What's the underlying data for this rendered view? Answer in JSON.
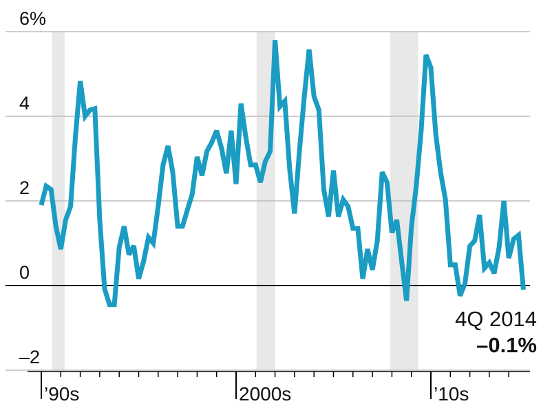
{
  "chart_data": {
    "type": "line",
    "x": [
      1990,
      1990.25,
      1990.5,
      1990.75,
      1991,
      1991.25,
      1991.5,
      1991.75,
      1992,
      1992.25,
      1992.5,
      1992.75,
      1993,
      1993.25,
      1993.5,
      1993.75,
      1994,
      1994.25,
      1994.5,
      1994.75,
      1995,
      1995.25,
      1995.5,
      1995.75,
      1996,
      1996.25,
      1996.5,
      1996.75,
      1997,
      1997.25,
      1997.5,
      1997.75,
      1998,
      1998.25,
      1998.5,
      1998.75,
      1999,
      1999.25,
      1999.5,
      1999.75,
      2000,
      2000.25,
      2000.5,
      2000.75,
      2001,
      2001.25,
      2001.5,
      2001.75,
      2002,
      2002.25,
      2002.5,
      2002.75,
      2003,
      2003.25,
      2003.5,
      2003.75,
      2004,
      2004.25,
      2004.5,
      2004.75,
      2005,
      2005.25,
      2005.5,
      2005.75,
      2006,
      2006.25,
      2006.5,
      2006.75,
      2007,
      2007.25,
      2007.5,
      2007.75,
      2008,
      2008.25,
      2008.5,
      2008.75,
      2009,
      2009.25,
      2009.5,
      2009.75,
      2010,
      2010.25,
      2010.5,
      2010.75,
      2011,
      2011.25,
      2011.5,
      2011.75,
      2012,
      2012.25,
      2012.5,
      2012.75,
      2013,
      2013.25,
      2013.5,
      2013.75,
      2014,
      2014.25,
      2014.5,
      2014.75
    ],
    "series": [
      {
        "color": "#1b9cc2",
        "values": [
          1.9,
          2.35,
          2.27,
          1.4,
          0.86,
          1.55,
          1.87,
          3.5,
          4.83,
          4.0,
          4.15,
          4.18,
          1.55,
          -0.08,
          -0.45,
          -0.45,
          0.9,
          1.4,
          0.73,
          0.94,
          0.16,
          0.57,
          1.14,
          1.0,
          1.87,
          2.85,
          3.3,
          2.68,
          1.4,
          1.4,
          1.79,
          2.16,
          3.04,
          2.6,
          3.17,
          3.38,
          3.66,
          3.25,
          2.65,
          3.66,
          2.4,
          4.3,
          3.5,
          2.85,
          2.85,
          2.44,
          2.93,
          3.17,
          5.8,
          4.23,
          4.36,
          2.76,
          1.7,
          3.17,
          4.47,
          5.58,
          4.47,
          4.15,
          2.27,
          1.63,
          2.72,
          1.63,
          2.03,
          1.87,
          1.35,
          1.35,
          0.16,
          0.86,
          0.37,
          1.06,
          2.68,
          2.44,
          1.25,
          1.55,
          0.57,
          -0.36,
          1.38,
          2.36,
          3.66,
          5.45,
          5.15,
          3.58,
          2.68,
          2.03,
          0.49,
          0.49,
          -0.24,
          0.05,
          0.93,
          1.06,
          1.67,
          0.41,
          0.54,
          0.29,
          0.9,
          2.0,
          0.65,
          1.1,
          1.19,
          -0.1
        ],
        "value_labels": [
          null,
          null,
          null,
          null,
          null,
          null,
          null,
          null,
          null,
          null,
          null,
          null,
          null,
          null,
          null,
          null,
          null,
          null,
          null,
          null,
          null,
          null,
          null,
          null,
          null,
          null,
          null,
          null,
          null,
          null,
          null,
          null,
          null,
          null,
          null,
          null,
          null,
          null,
          null,
          null,
          null,
          null,
          null,
          null,
          null,
          null,
          null,
          null,
          null,
          null,
          null,
          null,
          null,
          null,
          null,
          null,
          null,
          null,
          null,
          null,
          null,
          null,
          null,
          null,
          null,
          null,
          null,
          null,
          null,
          null,
          null,
          null,
          null,
          null,
          null,
          null,
          null,
          null,
          null,
          null,
          null,
          null,
          null,
          null,
          null,
          null,
          null,
          null,
          null,
          null,
          null,
          null,
          null,
          null,
          null,
          null,
          null,
          null,
          null,
          "–0.1%"
        ]
      }
    ],
    "annotation": "4Q 2014",
    "recessions": [
      [
        1990.55,
        1991.2
      ],
      [
        2001.05,
        2002.0
      ],
      [
        2007.9,
        2009.35
      ]
    ],
    "xlim": [
      1990,
      2015.2
    ],
    "xticks": [
      {
        "value": 1990,
        "label": "’90s"
      },
      {
        "value": 2000,
        "label": "2000s"
      },
      {
        "value": 2010,
        "label": "’10s"
      }
    ],
    "minor_xticks": [
      1991,
      1992,
      1993,
      1994,
      1995,
      1996,
      1997,
      1998,
      1999,
      2001,
      2002,
      2003,
      2004,
      2005,
      2006,
      2007,
      2008,
      2009,
      2011,
      2012,
      2013,
      2014
    ],
    "ylim": [
      -2,
      6
    ],
    "yticks": [
      {
        "value": -2,
        "label": "–2"
      },
      0,
      2,
      4,
      {
        "value": 6,
        "label": "6%"
      }
    ],
    "grid": true
  }
}
